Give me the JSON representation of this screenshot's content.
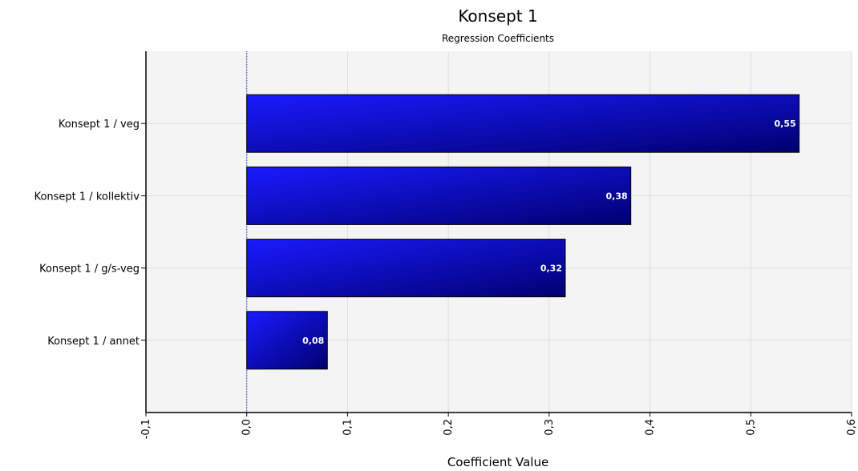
{
  "chart_data": {
    "type": "bar",
    "orientation": "horizontal",
    "title": "Konsept 1",
    "subtitle": "Regression Coefficients",
    "xlabel": "Coefficient Value",
    "ylabel": "",
    "categories": [
      "Konsept 1 / veg",
      "Konsept 1 / kollektiv",
      "Konsept 1 / g/s-veg",
      "Konsept 1 / annet"
    ],
    "values": [
      0.548,
      0.381,
      0.316,
      0.08
    ],
    "data_labels": [
      "0,55",
      "0,38",
      "0,32",
      "0,08"
    ],
    "xlim": [
      -0.1,
      0.6
    ],
    "x_ticks": [
      -0.1,
      0.0,
      0.1,
      0.2,
      0.3,
      0.4,
      0.5,
      0.6
    ],
    "x_tick_labels": [
      "-0,1",
      "0,0",
      "0,1",
      "0,2",
      "0,3",
      "0,4",
      "0,5",
      "0,6"
    ],
    "grid": true,
    "legend": "none",
    "reference_line": 0.0,
    "colors": {
      "bar_light": "#1a1aff",
      "bar_dark": "#000070",
      "bar_border": "#000000",
      "plot_background": "#f4f4f4",
      "grid": "#dcdcdc",
      "zero_line": "#1f2bd6"
    }
  }
}
